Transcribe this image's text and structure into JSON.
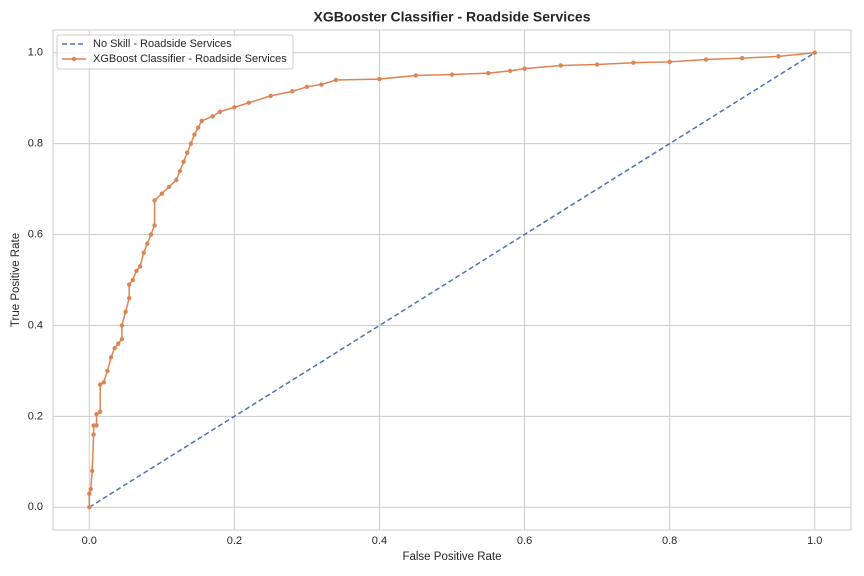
{
  "chart_data": {
    "type": "line",
    "title": "XGBooster Classifier - Roadside Services",
    "xlabel": "False Positive Rate",
    "ylabel": "True Positive Rate",
    "xlim": [
      -0.05,
      1.05
    ],
    "ylim": [
      -0.05,
      1.05
    ],
    "xticks": [
      {
        "value": 0,
        "label": "0.0"
      },
      0.2,
      0.4,
      0.6,
      0.8,
      {
        "value": 1,
        "label": "1.0"
      }
    ],
    "yticks": [
      {
        "value": 0,
        "label": "0.0"
      },
      0.2,
      0.4,
      0.6,
      0.8,
      {
        "value": 1,
        "label": "1.0"
      }
    ],
    "grid": true,
    "legend": "upper left",
    "series": [
      {
        "name": "No Skill - Roadside Services",
        "color": "#4c72b0",
        "linestyle": "dashed",
        "marker": false,
        "x": [
          0,
          1
        ],
        "values": [
          0,
          1
        ]
      },
      {
        "name": "XGBoost Classifier - Roadside Services",
        "color": "#dd8452",
        "linestyle": "solid",
        "marker": true,
        "x": [
          0,
          0,
          0.002,
          0.004,
          0.006,
          0.006,
          0.01,
          0.01,
          0.015,
          0.015,
          0.02,
          0.025,
          0.03,
          0.035,
          0.04,
          0.045,
          0.045,
          0.05,
          0.055,
          0.055,
          0.06,
          0.065,
          0.07,
          0.075,
          0.08,
          0.085,
          0.09,
          0.09,
          0.1,
          0.11,
          0.12,
          0.125,
          0.13,
          0.135,
          0.14,
          0.145,
          0.15,
          0.155,
          0.17,
          0.18,
          0.2,
          0.22,
          0.25,
          0.28,
          0.3,
          0.32,
          0.34,
          0.4,
          0.45,
          0.5,
          0.55,
          0.58,
          0.6,
          0.65,
          0.7,
          0.75,
          0.8,
          0.85,
          0.9,
          0.95,
          1
        ],
        "values": [
          0,
          0.03,
          0.04,
          0.08,
          0.16,
          0.18,
          0.18,
          0.205,
          0.21,
          0.27,
          0.275,
          0.3,
          0.33,
          0.35,
          0.36,
          0.37,
          0.4,
          0.43,
          0.46,
          0.49,
          0.5,
          0.52,
          0.53,
          0.56,
          0.58,
          0.6,
          0.62,
          0.675,
          0.69,
          0.705,
          0.72,
          0.74,
          0.76,
          0.78,
          0.8,
          0.82,
          0.835,
          0.85,
          0.86,
          0.87,
          0.88,
          0.89,
          0.905,
          0.915,
          0.925,
          0.93,
          0.94,
          0.942,
          0.95,
          0.952,
          0.955,
          0.96,
          0.965,
          0.972,
          0.974,
          0.978,
          0.98,
          0.985,
          0.988,
          0.992,
          1
        ]
      }
    ]
  }
}
